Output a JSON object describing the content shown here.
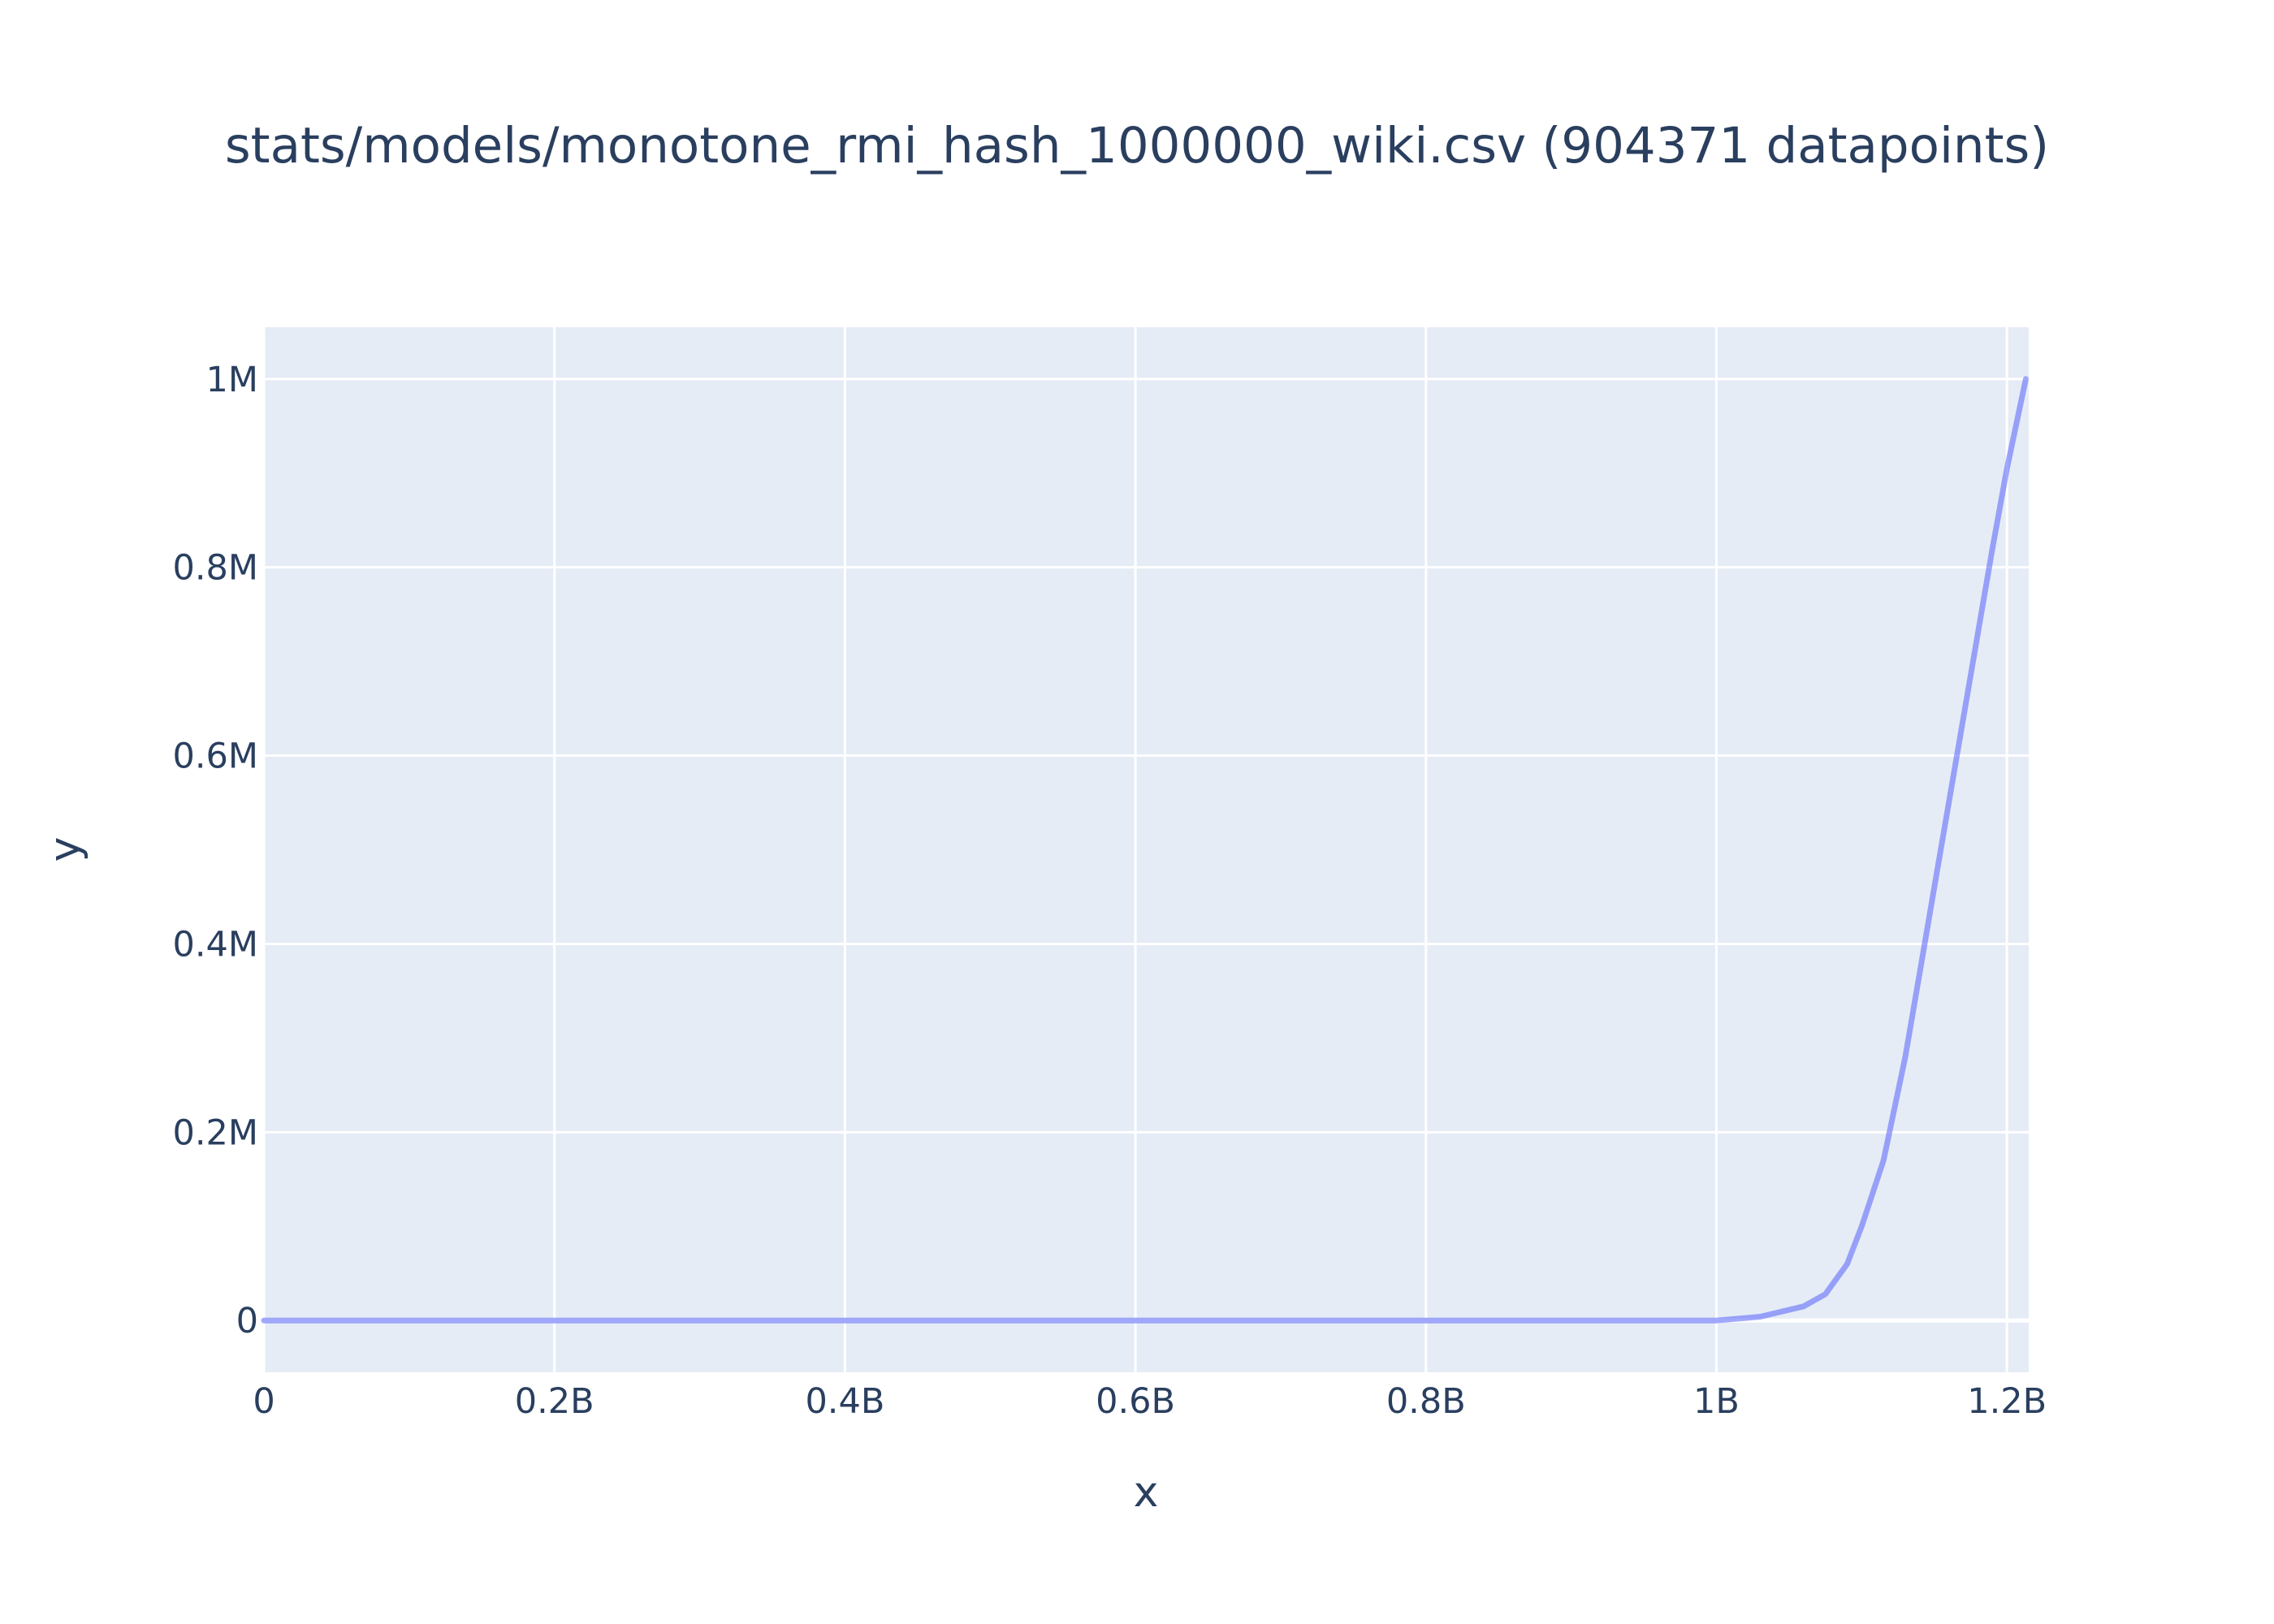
{
  "chart_data": {
    "type": "line",
    "title": "stats/models/monotone_rmi_hash_1000000_wiki.csv (904371 datapoints)",
    "xlabel": "x",
    "ylabel": "y",
    "xlim": [
      0,
      1215000000
    ],
    "ylim": [
      -55000,
      1055000
    ],
    "grid": true,
    "legend": "none",
    "x_ticks": [
      {
        "value": 0,
        "label": "0"
      },
      {
        "value": 200000000,
        "label": "0.2B"
      },
      {
        "value": 400000000,
        "label": "0.4B"
      },
      {
        "value": 600000000,
        "label": "0.6B"
      },
      {
        "value": 800000000,
        "label": "0.8B"
      },
      {
        "value": 1000000000,
        "label": "1B"
      },
      {
        "value": 1200000000,
        "label": "1.2B"
      }
    ],
    "y_ticks": [
      {
        "value": 0,
        "label": "0"
      },
      {
        "value": 200000,
        "label": "0.2M"
      },
      {
        "value": 400000,
        "label": "0.4M"
      },
      {
        "value": 600000,
        "label": "0.6M"
      },
      {
        "value": 800000,
        "label": "0.8M"
      },
      {
        "value": 1000000,
        "label": "1M"
      }
    ],
    "series": [
      {
        "color": "#636efa",
        "x": [
          0,
          1000000000,
          1030000000,
          1060000000,
          1075000000,
          1090000000,
          1100000000,
          1115000000,
          1130000000,
          1140000000,
          1150000000,
          1160000000,
          1170000000,
          1180000000,
          1190000000,
          1200000000,
          1213000000
        ],
        "y": [
          0,
          0,
          4000,
          15000,
          28000,
          60000,
          100000,
          170000,
          280000,
          370000,
          460000,
          550000,
          640000,
          730000,
          820000,
          905000,
          1000000
        ]
      }
    ]
  },
  "colors": {
    "plot_bg": "#e5ecf6",
    "grid": "#ffffff",
    "text": "#2a3f5f",
    "line": "#636efa"
  }
}
